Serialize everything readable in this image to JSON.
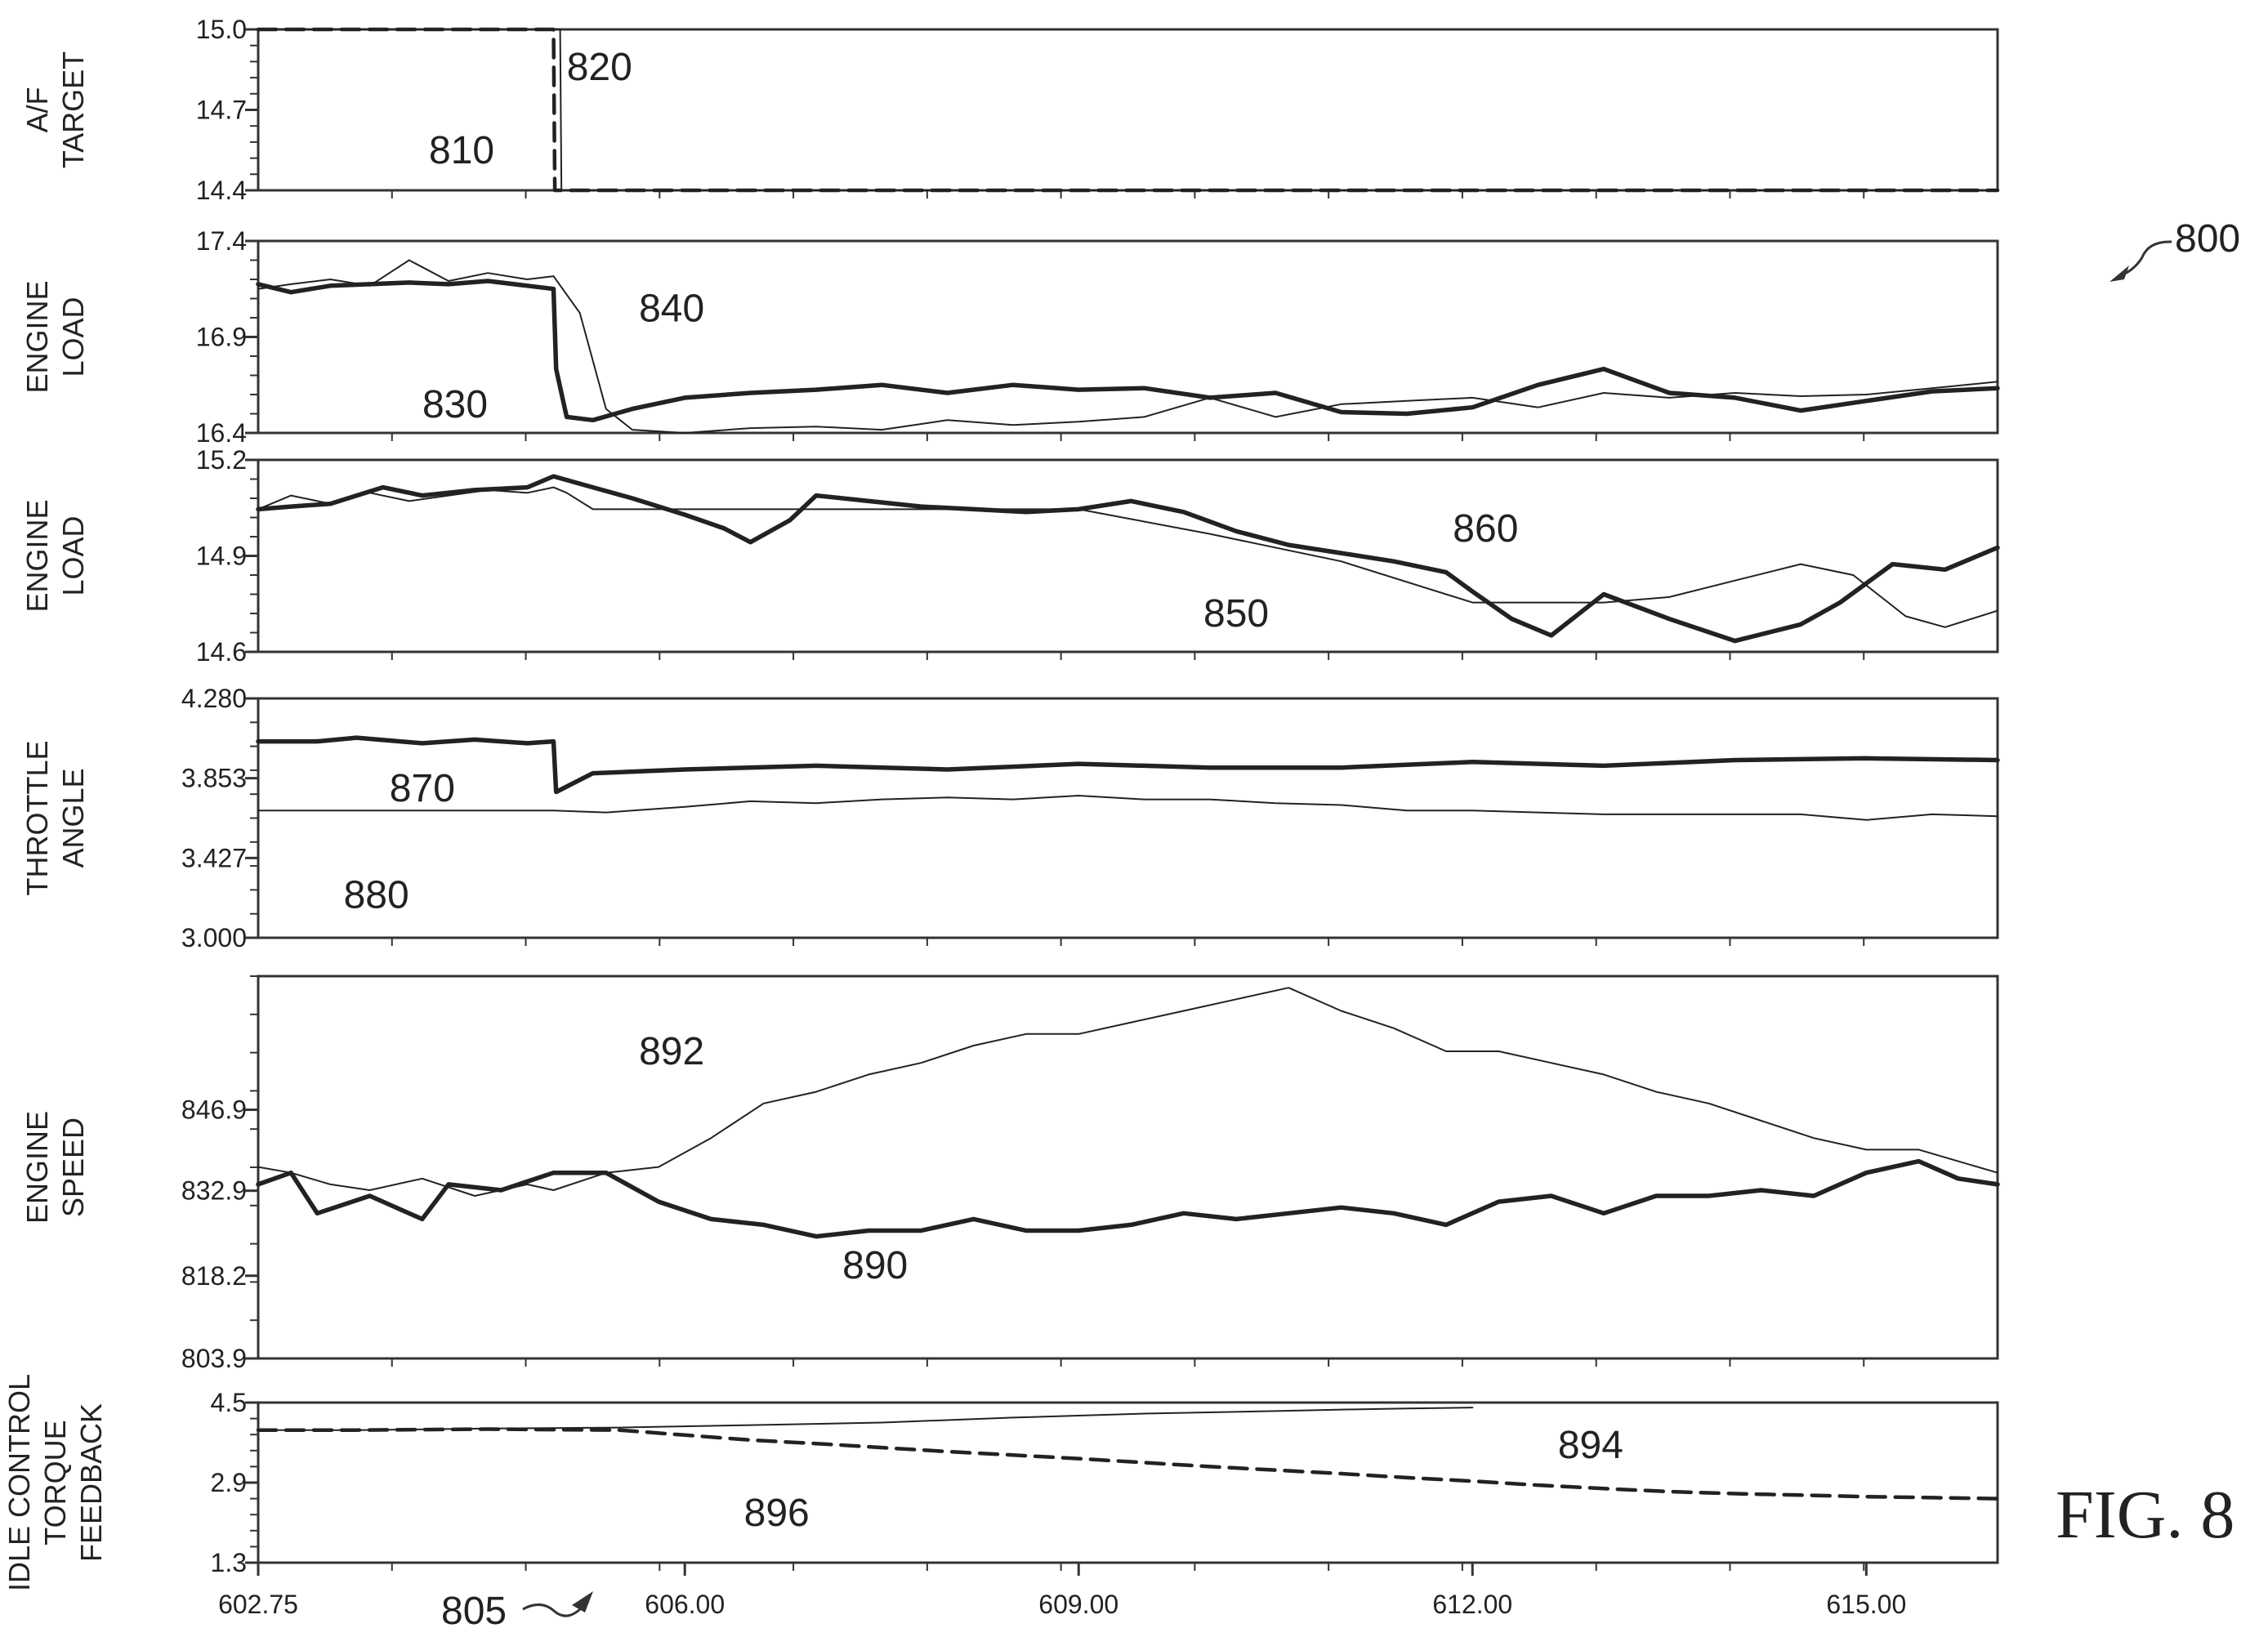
{
  "figure": {
    "ref_number": "800",
    "fig_label": "FIG. 8",
    "x_ref": "805"
  },
  "chart_data": [
    {
      "type": "line",
      "ylabel": [
        "A/F",
        "TARGET"
      ],
      "ylim": [
        14.4,
        15.0
      ],
      "yticks": [
        "15.0",
        "14.7",
        "14.4"
      ],
      "x_range": [
        602.75,
        616.0
      ],
      "series": [
        {
          "ref": "810",
          "style": "dashed",
          "x": [
            602.75,
            605.0,
            605.01,
            616.0
          ],
          "y": [
            15.0,
            15.0,
            14.4,
            14.4
          ]
        },
        {
          "ref": "820",
          "style": "thin",
          "x": [
            602.75,
            605.05,
            605.06,
            616.0
          ],
          "y": [
            15.0,
            15.0,
            14.4,
            14.4
          ]
        }
      ],
      "annotations": [
        {
          "text": "820",
          "x": 605.35,
          "y": 14.86
        },
        {
          "text": "810",
          "x": 604.3,
          "y": 14.55
        }
      ]
    },
    {
      "type": "line",
      "ylabel": [
        "ENGINE",
        "LOAD"
      ],
      "ylim": [
        16.2,
        17.4
      ],
      "yticks": [
        "17.4",
        "16.9",
        "16.4"
      ],
      "x_range": [
        602.75,
        616.0
      ],
      "series": [
        {
          "ref": "830",
          "style": "thick",
          "x": [
            602.75,
            603.0,
            603.3,
            603.6,
            603.9,
            604.2,
            604.5,
            604.8,
            605.0,
            605.02,
            605.1,
            605.3,
            605.6,
            606.0,
            606.5,
            607.0,
            607.5,
            608.0,
            608.5,
            609.0,
            609.5,
            610.0,
            610.5,
            611.0,
            611.5,
            612.0,
            612.5,
            613.0,
            613.5,
            614.0,
            614.5,
            615.0,
            615.5,
            616.0
          ],
          "y": [
            17.13,
            17.08,
            17.12,
            17.13,
            17.14,
            17.13,
            17.15,
            17.12,
            17.1,
            16.6,
            16.3,
            16.28,
            16.35,
            16.42,
            16.45,
            16.47,
            16.5,
            16.45,
            16.5,
            16.47,
            16.48,
            16.42,
            16.45,
            16.33,
            16.32,
            16.36,
            16.5,
            16.6,
            16.45,
            16.42,
            16.34,
            16.4,
            16.46,
            16.48
          ]
        },
        {
          "ref": "840",
          "style": "thin",
          "x": [
            602.75,
            603.0,
            603.3,
            603.6,
            603.9,
            604.2,
            604.5,
            604.8,
            605.0,
            605.2,
            605.4,
            605.6,
            606.0,
            606.5,
            607.0,
            607.5,
            608.0,
            608.5,
            609.0,
            609.5,
            610.0,
            610.5,
            611.0,
            611.5,
            612.0,
            612.5,
            613.0,
            613.5,
            614.0,
            614.5,
            615.0,
            615.5,
            616.0
          ],
          "y": [
            17.1,
            17.13,
            17.16,
            17.12,
            17.28,
            17.15,
            17.2,
            17.16,
            17.18,
            16.95,
            16.35,
            16.22,
            16.2,
            16.23,
            16.24,
            16.22,
            16.28,
            16.25,
            16.27,
            16.3,
            16.42,
            16.3,
            16.38,
            16.4,
            16.42,
            16.36,
            16.45,
            16.42,
            16.45,
            16.43,
            16.44,
            16.48,
            16.52
          ]
        }
      ],
      "annotations": [
        {
          "text": "840",
          "x": 605.9,
          "y": 16.98
        },
        {
          "text": "830",
          "x": 604.25,
          "y": 16.38
        }
      ]
    },
    {
      "type": "line",
      "ylabel": [
        "ENGINE",
        "LOAD"
      ],
      "ylim": [
        14.6,
        15.3
      ],
      "yticks": [
        "15.2",
        "14.9",
        "14.6"
      ],
      "x_range": [
        602.75,
        616.0
      ],
      "series": [
        {
          "ref": "850",
          "style": "thin",
          "x": [
            602.75,
            603.0,
            603.3,
            603.6,
            603.9,
            604.2,
            604.5,
            604.8,
            605.0,
            605.1,
            605.3,
            605.6,
            606.0,
            607.0,
            608.0,
            609.0,
            610.0,
            611.0,
            612.0,
            612.5,
            613.0,
            613.5,
            614.0,
            614.5,
            614.9,
            615.3,
            615.6,
            616.0
          ],
          "y": [
            15.12,
            15.17,
            15.14,
            15.18,
            15.15,
            15.17,
            15.19,
            15.18,
            15.2,
            15.18,
            15.12,
            15.12,
            15.12,
            15.12,
            15.12,
            15.12,
            15.03,
            14.93,
            14.78,
            14.78,
            14.78,
            14.8,
            14.86,
            14.92,
            14.88,
            14.73,
            14.69,
            14.75
          ]
        },
        {
          "ref": "860",
          "style": "thick",
          "x": [
            602.75,
            603.0,
            603.3,
            603.7,
            604.0,
            604.4,
            604.8,
            605.0,
            605.3,
            605.6,
            606.0,
            606.3,
            606.5,
            606.8,
            607.0,
            607.4,
            607.8,
            608.2,
            608.6,
            609.0,
            609.4,
            609.8,
            610.2,
            610.6,
            611.0,
            611.4,
            611.8,
            612.0,
            612.3,
            612.6,
            613.0,
            613.5,
            614.0,
            614.5,
            614.8,
            615.2,
            615.6,
            616.0
          ],
          "y": [
            15.12,
            15.13,
            15.14,
            15.2,
            15.17,
            15.19,
            15.2,
            15.24,
            15.2,
            15.16,
            15.1,
            15.05,
            15.0,
            15.08,
            15.17,
            15.15,
            15.13,
            15.12,
            15.11,
            15.12,
            15.15,
            15.11,
            15.04,
            14.99,
            14.96,
            14.93,
            14.89,
            14.82,
            14.72,
            14.66,
            14.81,
            14.72,
            14.64,
            14.7,
            14.78,
            14.92,
            14.9,
            14.98
          ]
        }
      ],
      "annotations": [
        {
          "text": "860",
          "x": 612.1,
          "y": 15.05
        },
        {
          "text": "850",
          "x": 610.2,
          "y": 14.74
        }
      ]
    },
    {
      "type": "line",
      "ylabel": [
        "THROTTLE",
        "ANGLE"
      ],
      "ylim": [
        3.0,
        4.28
      ],
      "yticks": [
        "4.280",
        "3.853",
        "3.427",
        "3.000"
      ],
      "x_range": [
        602.75,
        616.0
      ],
      "series": [
        {
          "ref": "870",
          "style": "thick",
          "x": [
            602.75,
            603.2,
            603.5,
            604.0,
            604.4,
            604.8,
            605.0,
            605.02,
            605.3,
            606.0,
            607.0,
            608.0,
            609.0,
            610.0,
            611.0,
            612.0,
            613.0,
            614.0,
            615.0,
            616.0
          ],
          "y": [
            4.05,
            4.05,
            4.07,
            4.04,
            4.06,
            4.04,
            4.05,
            3.78,
            3.88,
            3.9,
            3.92,
            3.9,
            3.93,
            3.91,
            3.91,
            3.94,
            3.92,
            3.95,
            3.96,
            3.95
          ]
        },
        {
          "ref": "880",
          "style": "thin",
          "x": [
            602.75,
            603.5,
            604.0,
            604.5,
            605.0,
            605.4,
            606.0,
            606.5,
            607.0,
            607.5,
            608.0,
            608.5,
            609.0,
            609.5,
            610.0,
            610.5,
            611.0,
            611.5,
            612.0,
            612.5,
            613.0,
            613.5,
            614.0,
            614.5,
            615.0,
            615.5,
            616.0
          ],
          "y": [
            3.68,
            3.68,
            3.68,
            3.68,
            3.68,
            3.67,
            3.7,
            3.73,
            3.72,
            3.74,
            3.75,
            3.74,
            3.76,
            3.74,
            3.74,
            3.72,
            3.71,
            3.68,
            3.68,
            3.67,
            3.66,
            3.66,
            3.66,
            3.66,
            3.63,
            3.66,
            3.65
          ]
        }
      ],
      "annotations": [
        {
          "text": "870",
          "x": 604.0,
          "y": 3.8
        },
        {
          "text": "880",
          "x": 603.65,
          "y": 3.23
        }
      ]
    },
    {
      "type": "line",
      "ylabel": [
        "ENGINE",
        "SPEED"
      ],
      "ylim": [
        803.9,
        870.0
      ],
      "yticks": [
        "846.9",
        "832.9",
        "818.2",
        "803.9"
      ],
      "x_range": [
        602.75,
        616.0
      ],
      "series": [
        {
          "ref": "890",
          "style": "thick",
          "x": [
            602.75,
            603.0,
            603.2,
            603.6,
            604.0,
            604.2,
            604.6,
            605.0,
            605.4,
            605.8,
            606.2,
            606.6,
            607.0,
            607.4,
            607.8,
            608.2,
            608.6,
            609.0,
            609.4,
            609.8,
            610.2,
            610.6,
            611.0,
            611.4,
            611.8,
            612.2,
            612.6,
            613.0,
            613.4,
            613.8,
            614.2,
            614.6,
            615.0,
            615.4,
            615.7,
            616.0
          ],
          "y": [
            834,
            836,
            829,
            832,
            828,
            834,
            833,
            836,
            836,
            831,
            828,
            827,
            825,
            826,
            826,
            828,
            826,
            826,
            827,
            829,
            828,
            829,
            830,
            829,
            827,
            831,
            832,
            829,
            832,
            832,
            833,
            832,
            836,
            838,
            835,
            834
          ]
        },
        {
          "ref": "892",
          "style": "thin",
          "x": [
            602.75,
            603.0,
            603.3,
            603.6,
            604.0,
            604.4,
            604.8,
            605.0,
            605.4,
            605.8,
            606.2,
            606.6,
            607.0,
            607.4,
            607.8,
            608.2,
            608.6,
            609.0,
            609.4,
            609.8,
            610.2,
            610.6,
            611.0,
            611.4,
            611.8,
            612.2,
            612.6,
            613.0,
            613.4,
            613.8,
            614.2,
            614.6,
            615.0,
            615.4,
            615.7,
            616.0
          ],
          "y": [
            837,
            836,
            834,
            833,
            835,
            832,
            834,
            833,
            836,
            837,
            842,
            848,
            850,
            853,
            855,
            858,
            860,
            860,
            862,
            864,
            866,
            868,
            864,
            861,
            857,
            857,
            855,
            853,
            850,
            848,
            845,
            842,
            840,
            840,
            838,
            836
          ]
        }
      ],
      "annotations": [
        {
          "text": "892",
          "x": 605.9,
          "y": 857.0
        },
        {
          "text": "890",
          "x": 607.45,
          "y": 820.0
        }
      ]
    },
    {
      "type": "line",
      "ylabel": [
        "IDLE CONTROL",
        "TORQUE",
        "FEEDBACK"
      ],
      "ylim": [
        1.3,
        4.5
      ],
      "yticks": [
        "4.5",
        "2.9",
        "1.3"
      ],
      "xticks": [
        "602.75",
        "606.00",
        "609.00",
        "612.00",
        "615.00"
      ],
      "x_range": [
        602.75,
        616.0
      ],
      "series": [
        {
          "ref": "894",
          "style": "thin",
          "x": [
            602.75,
            603.5,
            604.5,
            605.5,
            606.5,
            607.5,
            608.5,
            609.5,
            610.5,
            611.0,
            611.5,
            612.0
          ],
          "y": [
            3.95,
            3.95,
            3.98,
            4.0,
            4.05,
            4.1,
            4.2,
            4.28,
            4.33,
            4.36,
            4.38,
            4.4
          ]
        },
        {
          "ref": "896",
          "style": "dashed",
          "x": [
            602.75,
            603.5,
            604.5,
            605.5,
            606.0,
            606.5,
            607.0,
            607.5,
            608.0,
            608.5,
            609.0,
            609.5,
            610.0,
            610.5,
            611.0,
            611.5,
            612.0,
            612.5,
            613.0,
            613.5,
            614.0,
            614.5,
            615.0,
            615.5,
            616.0
          ],
          "y": [
            3.95,
            3.95,
            3.97,
            3.95,
            3.85,
            3.75,
            3.68,
            3.6,
            3.52,
            3.45,
            3.38,
            3.3,
            3.22,
            3.15,
            3.08,
            3.0,
            2.93,
            2.85,
            2.78,
            2.72,
            2.68,
            2.65,
            2.62,
            2.6,
            2.58
          ]
        }
      ],
      "annotations": [
        {
          "text": "894",
          "x": 612.9,
          "y": 3.65
        },
        {
          "text": "896",
          "x": 606.7,
          "y": 2.3
        }
      ]
    }
  ]
}
